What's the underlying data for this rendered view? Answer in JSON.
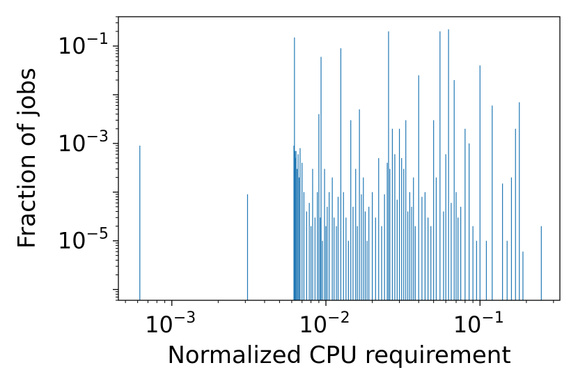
{
  "chart_data": {
    "type": "bar",
    "xlabel": "Normalized CPU requirement",
    "ylabel": "Fraction of jobs",
    "xscale": "log",
    "yscale": "log",
    "xlim": [
      0.00045,
      0.33
    ],
    "ylim": [
      6e-07,
      0.4
    ],
    "grid": false,
    "legend": "none",
    "bar_color": "#1f77b4",
    "x_ticks": [
      {
        "base": "10",
        "exp": "−3",
        "value": 0.001
      },
      {
        "base": "10",
        "exp": "−2",
        "value": 0.01
      },
      {
        "base": "10",
        "exp": "−1",
        "value": 0.1
      }
    ],
    "y_ticks": [
      {
        "base": "10",
        "exp": "−5",
        "value": 1e-05
      },
      {
        "base": "10",
        "exp": "−3",
        "value": 0.001
      },
      {
        "base": "10",
        "exp": "−1",
        "value": 0.1
      }
    ],
    "x": [
      0.00062,
      0.0031,
      0.0062,
      0.00625,
      0.0063,
      0.00635,
      0.0064,
      0.0065,
      0.0066,
      0.0067,
      0.0068,
      0.007,
      0.0072,
      0.0075,
      0.0078,
      0.008,
      0.0082,
      0.0085,
      0.0088,
      0.009,
      0.0092,
      0.0093,
      0.0095,
      0.0098,
      0.01,
      0.0102,
      0.0105,
      0.011,
      0.0113,
      0.0117,
      0.012,
      0.0125,
      0.013,
      0.0135,
      0.014,
      0.0145,
      0.015,
      0.0156,
      0.016,
      0.0165,
      0.017,
      0.0175,
      0.018,
      0.0185,
      0.019,
      0.02,
      0.021,
      0.022,
      0.023,
      0.024,
      0.025,
      0.0255,
      0.026,
      0.027,
      0.028,
      0.029,
      0.03,
      0.031,
      0.032,
      0.033,
      0.034,
      0.035,
      0.036,
      0.037,
      0.038,
      0.04,
      0.042,
      0.044,
      0.046,
      0.048,
      0.05,
      0.052,
      0.055,
      0.058,
      0.06,
      0.0625,
      0.065,
      0.068,
      0.07,
      0.072,
      0.075,
      0.08,
      0.085,
      0.09,
      0.095,
      0.1,
      0.11,
      0.12,
      0.14,
      0.15,
      0.16,
      0.17,
      0.18,
      0.19,
      0.25
    ],
    "y": [
      0.0009,
      9e-05,
      0.0009,
      0.15,
      0.0007,
      0.0005,
      0.0007,
      0.0003,
      0.0006,
      0.0002,
      0.0008,
      0.0004,
      0.0001,
      4e-05,
      6e-05,
      2e-05,
      0.0003,
      3e-05,
      0.0001,
      0.004,
      3e-05,
      0.06,
      1e-05,
      0.0003,
      2e-05,
      5e-05,
      0.0001,
      0.0002,
      3e-05,
      2e-05,
      8e-05,
      0.09,
      0.0001,
      3e-05,
      1e-05,
      0.003,
      5e-05,
      0.0003,
      2e-05,
      0.005,
      9e-05,
      0.0002,
      4e-05,
      1e-05,
      5e-05,
      0.0001,
      3e-05,
      0.0005,
      2e-05,
      9e-05,
      0.0004,
      0.2,
      0.0003,
      0.002,
      0.0006,
      7e-05,
      0.002,
      0.0005,
      0.0003,
      0.003,
      4e-05,
      0.0001,
      5e-05,
      0.0002,
      2e-05,
      0.025,
      8e-05,
      0.0001,
      3e-05,
      2e-05,
      0.003,
      0.0002,
      0.2,
      4e-05,
      0.0006,
      0.22,
      6e-05,
      0.02,
      0.0001,
      3e-05,
      5e-05,
      0.002,
      0.001,
      2e-05,
      1e-05,
      0.04,
      1e-05,
      0.006,
      0.00015,
      1e-05,
      0.0002,
      0.002,
      0.007,
      6e-06,
      2e-05
    ]
  }
}
